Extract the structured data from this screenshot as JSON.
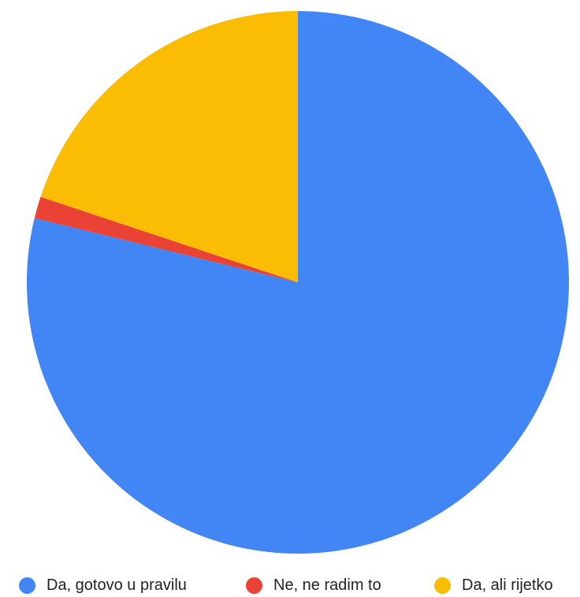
{
  "chart_data": {
    "type": "pie",
    "slices": [
      {
        "label": "Da, gotovo u pravilu",
        "value": 78.8,
        "color": "#4285f4"
      },
      {
        "label": "Ne, ne radim to",
        "value": 1.3,
        "color": "#ea4335"
      },
      {
        "label": "Da, ali rijetko",
        "value": 19.9,
        "color": "#fbbc04"
      }
    ],
    "start_angle": "12 o'clock",
    "direction": "clockwise",
    "legend_position": "bottom",
    "data_labels": "none"
  }
}
